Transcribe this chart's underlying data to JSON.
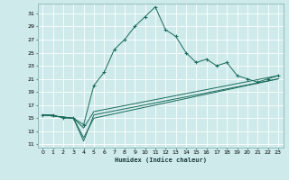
{
  "xlabel": "Humidex (Indice chaleur)",
  "xlim": [
    -0.5,
    23.5
  ],
  "ylim": [
    10.5,
    32.5
  ],
  "xticks": [
    0,
    1,
    2,
    3,
    4,
    5,
    6,
    7,
    8,
    9,
    10,
    11,
    12,
    13,
    14,
    15,
    16,
    17,
    18,
    19,
    20,
    21,
    22,
    23
  ],
  "yticks": [
    11,
    13,
    15,
    17,
    19,
    21,
    23,
    25,
    27,
    29,
    31
  ],
  "bg_color": "#ceeaea",
  "grid_color": "#b0d4d4",
  "line_color": "#1a6b5a",
  "lines": [
    {
      "x": [
        0,
        1,
        2,
        3,
        4,
        5,
        6,
        7,
        8,
        9,
        10,
        11,
        12,
        13,
        14,
        15,
        16,
        17,
        18,
        19,
        20,
        21,
        22,
        23
      ],
      "y": [
        15.5,
        15.5,
        15.0,
        15.0,
        14.0,
        20.0,
        22.0,
        25.5,
        27.0,
        29.0,
        30.5,
        32.0,
        28.5,
        27.5,
        25.0,
        23.5,
        24.0,
        23.0,
        23.5,
        21.5,
        21.0,
        20.5,
        21.0,
        21.5
      ],
      "marker": true
    },
    {
      "x": [
        0,
        3,
        4,
        5,
        23
      ],
      "y": [
        15.5,
        15.0,
        13.5,
        16.0,
        21.5
      ],
      "marker": false
    },
    {
      "x": [
        0,
        3,
        4,
        5,
        23
      ],
      "y": [
        15.5,
        15.0,
        12.0,
        15.0,
        21.0
      ],
      "marker": false
    },
    {
      "x": [
        0,
        3,
        4,
        5,
        23
      ],
      "y": [
        15.5,
        15.0,
        11.5,
        15.5,
        21.0
      ],
      "marker": false
    }
  ]
}
